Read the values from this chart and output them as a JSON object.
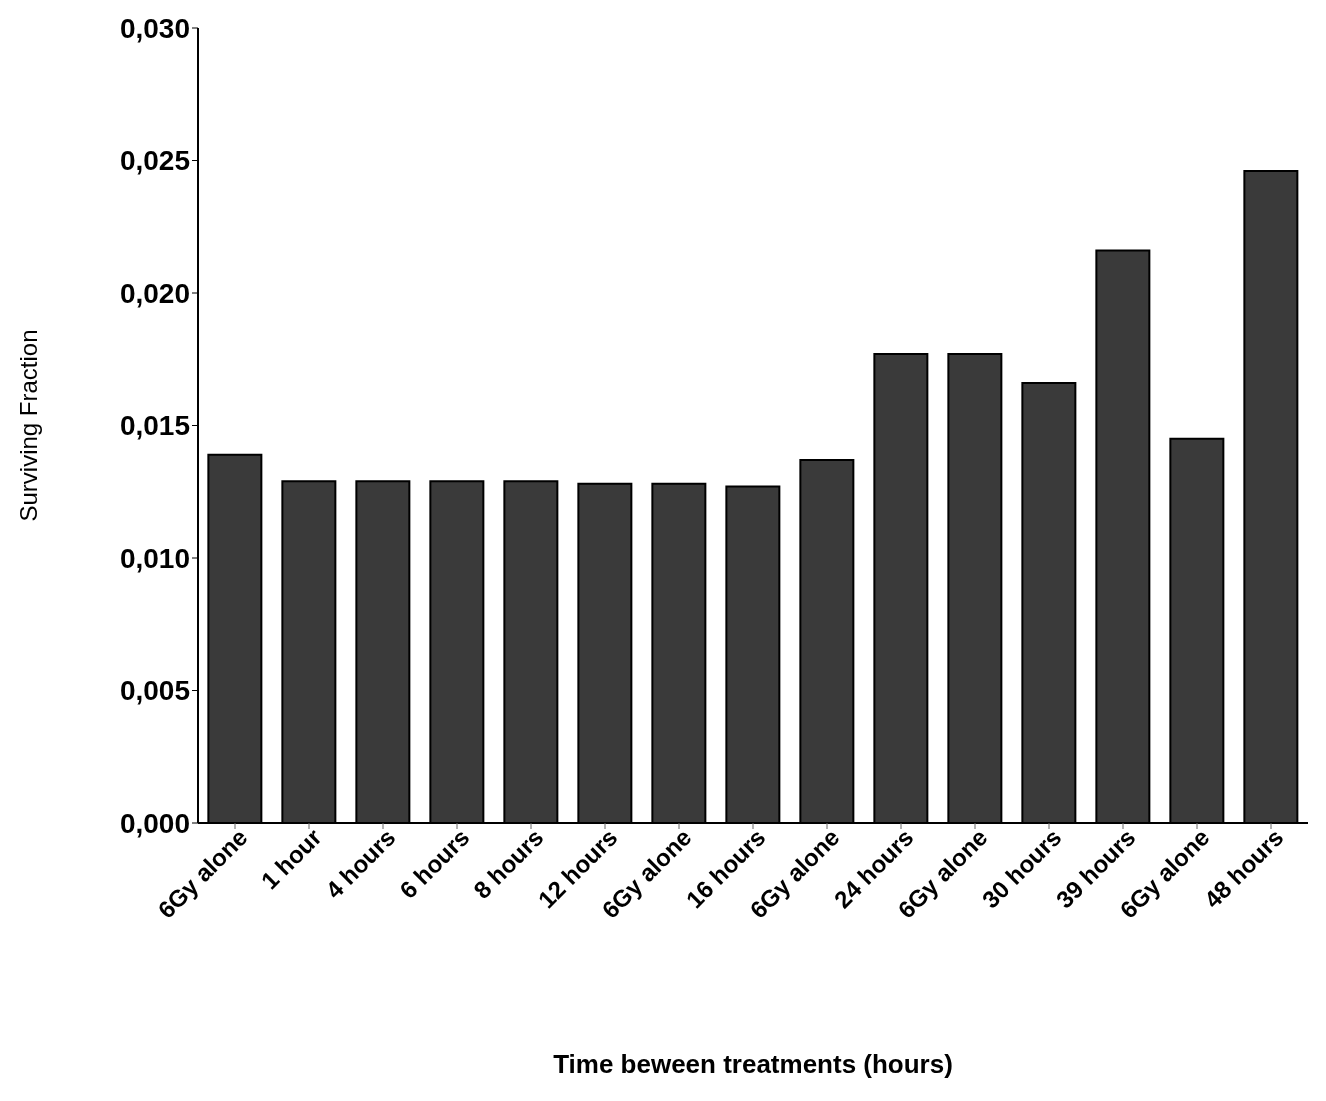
{
  "chart_data": {
    "type": "bar",
    "xlabel": "Time beween treatments (hours)",
    "ylabel": "Surviving Fraction",
    "categories": [
      "6Gy alone",
      "1 hour",
      "4 hours",
      "6 hours",
      "8 hours",
      "12 hours",
      "6Gy alone",
      "16 hours",
      "6Gy alone",
      "24 hours",
      "6Gy alone",
      "30 hours",
      "39 hours",
      "6Gy alone",
      "48 hours"
    ],
    "values": [
      0.0139,
      0.0129,
      0.0129,
      0.0129,
      0.0129,
      0.0128,
      0.0128,
      0.0127,
      0.0137,
      0.0177,
      0.0177,
      0.0166,
      0.0216,
      0.0145,
      0.0246
    ],
    "color": "#3a3a3a",
    "ylim": [
      0,
      0.03
    ],
    "yticks": [
      {
        "value": 0,
        "label": "0,000"
      },
      {
        "value": 0.005,
        "label": "0,005"
      },
      {
        "value": 0.01,
        "label": "0,010"
      },
      {
        "value": 0.015,
        "label": "0,015"
      },
      {
        "value": 0.02,
        "label": "0,020"
      },
      {
        "value": 0.025,
        "label": "0,025"
      },
      {
        "value": 0.03,
        "label": "0,030"
      }
    ],
    "grid": false
  }
}
